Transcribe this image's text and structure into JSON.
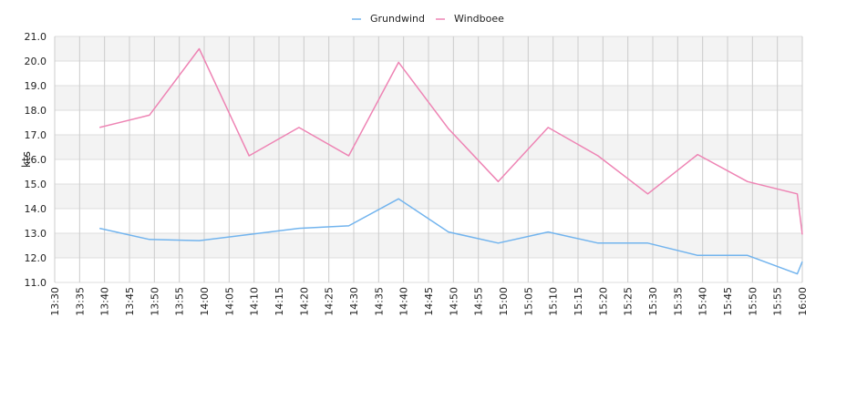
{
  "chart_data": {
    "type": "line",
    "ylabel": "kts",
    "ylim": [
      11.0,
      21.0
    ],
    "y_ticks": [
      "11.0",
      "12.0",
      "13.0",
      "14.0",
      "15.0",
      "16.0",
      "17.0",
      "18.0",
      "19.0",
      "20.0",
      "21.0"
    ],
    "x_range": [
      "13:30",
      "16:00"
    ],
    "x_ticks": [
      "13:30",
      "13:35",
      "13:40",
      "13:45",
      "13:50",
      "13:55",
      "14:00",
      "14:05",
      "14:10",
      "14:15",
      "14:20",
      "14:25",
      "14:30",
      "14:35",
      "14:40",
      "14:45",
      "14:50",
      "14:55",
      "15:00",
      "15:05",
      "15:10",
      "15:15",
      "15:20",
      "15:25",
      "15:30",
      "15:35",
      "15:40",
      "15:45",
      "15:50",
      "15:55",
      "16:00"
    ],
    "grid": true,
    "band_shading": true,
    "legend_position": "top-center",
    "series": [
      {
        "name": "Grundwind",
        "color": "#72b4ee",
        "points": [
          [
            "13:39",
            13.2
          ],
          [
            "13:49",
            12.75
          ],
          [
            "13:59",
            12.7
          ],
          [
            "14:09",
            12.95
          ],
          [
            "14:19",
            13.2
          ],
          [
            "14:29",
            13.3
          ],
          [
            "14:39",
            14.4
          ],
          [
            "14:49",
            13.05
          ],
          [
            "14:59",
            12.6
          ],
          [
            "15:09",
            13.05
          ],
          [
            "15:19",
            12.6
          ],
          [
            "15:29",
            12.6
          ],
          [
            "15:39",
            12.1
          ],
          [
            "15:49",
            12.1
          ],
          [
            "15:59",
            11.35
          ],
          [
            "16:00",
            11.85
          ]
        ]
      },
      {
        "name": "Windboee",
        "color": "#ee84b4",
        "points": [
          [
            "13:39",
            17.3
          ],
          [
            "13:49",
            17.8
          ],
          [
            "13:59",
            20.5
          ],
          [
            "14:09",
            16.15
          ],
          [
            "14:19",
            17.3
          ],
          [
            "14:29",
            16.15
          ],
          [
            "14:39",
            19.95
          ],
          [
            "14:49",
            17.25
          ],
          [
            "14:59",
            15.1
          ],
          [
            "15:09",
            17.3
          ],
          [
            "15:19",
            16.15
          ],
          [
            "15:29",
            14.6
          ],
          [
            "15:39",
            16.2
          ],
          [
            "15:49",
            15.1
          ],
          [
            "15:59",
            14.6
          ],
          [
            "16:00",
            12.95
          ]
        ]
      }
    ]
  }
}
